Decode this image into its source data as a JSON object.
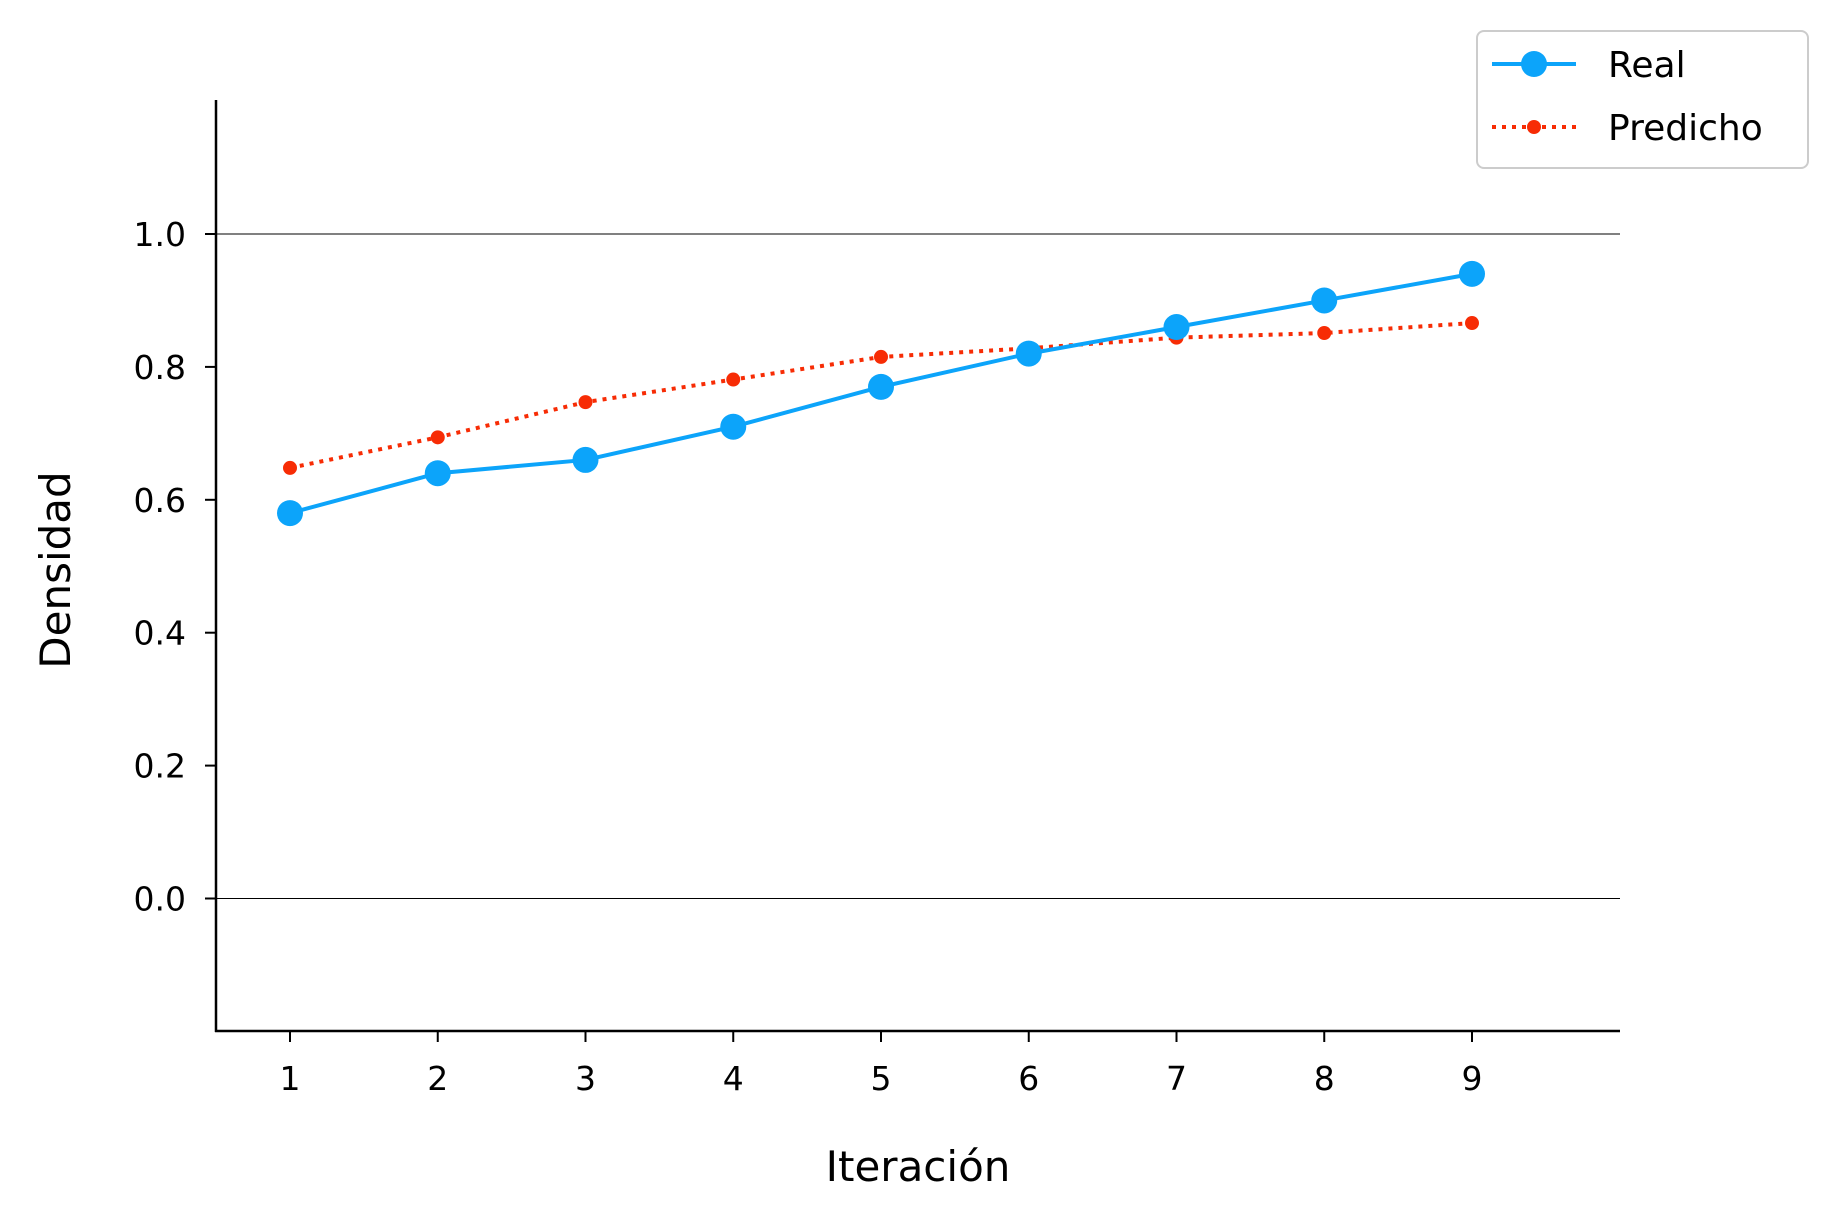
{
  "chart_data": {
    "type": "line",
    "xlabel": "Iteración",
    "ylabel": "Densidad",
    "x": [
      1,
      2,
      3,
      4,
      5,
      6,
      7,
      8,
      9
    ],
    "xlim": [
      0.5,
      10
    ],
    "ylim": [
      -0.2,
      1.2
    ],
    "x_ticks": [
      "1",
      "2",
      "3",
      "4",
      "5",
      "6",
      "7",
      "8",
      "9"
    ],
    "y_ticks": [
      0.0,
      0.2,
      0.4,
      0.6,
      0.8,
      1.0
    ],
    "y_tick_labels": [
      "0.0",
      "0.2",
      "0.4",
      "0.6",
      "0.8",
      "1.0"
    ],
    "reference_lines_y": [
      0.0,
      1.0
    ],
    "grid": false,
    "legend_position": "top-right",
    "series": [
      {
        "name": "Real",
        "values": [
          0.58,
          0.64,
          0.66,
          0.71,
          0.77,
          0.82,
          0.86,
          0.9,
          0.94
        ],
        "color": "#0ca4fa",
        "line_style": "solid",
        "marker": "large-circle"
      },
      {
        "name": "Predicho",
        "values": [
          0.648,
          0.694,
          0.747,
          0.781,
          0.815,
          0.828,
          0.844,
          0.851,
          0.866
        ],
        "color": "#f72c05",
        "line_style": "dotted",
        "marker": "small-circle"
      }
    ]
  }
}
